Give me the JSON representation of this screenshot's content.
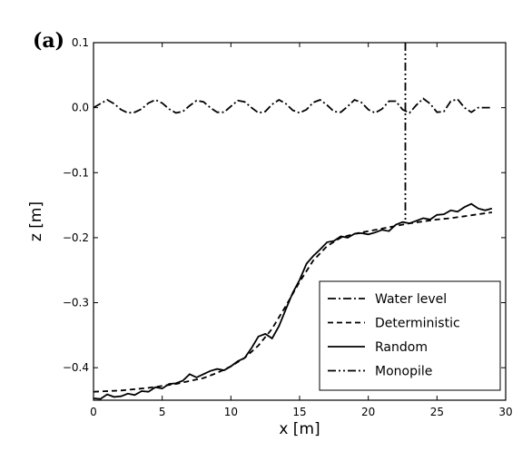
{
  "panel_label": "(a)",
  "chart_data": {
    "type": "line",
    "xlabel": "x [m]",
    "ylabel": "z [m]",
    "xlim": [
      0,
      30
    ],
    "ylim": [
      -0.45,
      0.1
    ],
    "xticks": [
      0,
      5,
      10,
      15,
      20,
      25,
      30
    ],
    "yticks": [
      0.1,
      0.0,
      -0.1,
      -0.2,
      -0.3,
      -0.4
    ],
    "xtick_labels": [
      "0",
      "5",
      "10",
      "15",
      "20",
      "25",
      "30"
    ],
    "ytick_labels": [
      "0.1",
      "0.0",
      "−0.1",
      "−0.2",
      "−0.3",
      "−0.4"
    ],
    "grid": false,
    "legend_position": "bottom-right",
    "series": [
      {
        "name": "Water level",
        "style": "dashdot",
        "x": [
          0,
          1,
          1.5,
          2,
          2.5,
          3,
          3.5,
          4,
          4.5,
          5,
          5.5,
          6,
          6.5,
          7,
          7.5,
          8,
          8.5,
          9,
          9.5,
          10,
          10.5,
          11,
          11.5,
          12,
          12.5,
          13,
          13.5,
          14,
          14.5,
          15,
          15.5,
          16,
          16.5,
          17,
          17.5,
          18,
          18.5,
          19,
          19.5,
          20,
          20.5,
          21,
          21.5,
          22,
          22.5,
          23,
          23.5,
          24,
          24.5,
          25,
          25.5,
          26,
          26.5,
          27,
          27.5,
          28,
          29
        ],
        "values": [
          0.0,
          0.012,
          0.006,
          -0.003,
          -0.008,
          -0.007,
          -0.002,
          0.007,
          0.012,
          0.007,
          -0.002,
          -0.008,
          -0.006,
          0.003,
          0.011,
          0.009,
          0.0,
          -0.007,
          -0.007,
          0.002,
          0.011,
          0.009,
          0.0,
          -0.008,
          -0.006,
          0.005,
          0.012,
          0.006,
          -0.004,
          -0.008,
          -0.003,
          0.008,
          0.012,
          0.004,
          -0.006,
          -0.007,
          0.002,
          0.012,
          0.008,
          -0.003,
          -0.008,
          -0.002,
          0.01,
          0.01,
          -0.003,
          -0.008,
          0.004,
          0.014,
          0.006,
          -0.007,
          -0.006,
          0.01,
          0.013,
          0.0,
          -0.007,
          0.0,
          0.0
        ]
      },
      {
        "name": "Deterministic",
        "style": "dashed",
        "x": [
          0,
          2,
          4,
          6,
          8,
          9,
          10,
          11,
          12,
          13,
          14,
          15,
          16,
          17,
          18,
          19,
          20,
          21,
          22,
          23,
          24,
          25,
          26,
          27,
          28,
          29
        ],
        "values": [
          -0.437,
          -0.435,
          -0.431,
          -0.425,
          -0.416,
          -0.408,
          -0.398,
          -0.385,
          -0.366,
          -0.34,
          -0.305,
          -0.268,
          -0.235,
          -0.213,
          -0.2,
          -0.194,
          -0.19,
          -0.186,
          -0.182,
          -0.178,
          -0.175,
          -0.172,
          -0.17,
          -0.167,
          -0.164,
          -0.161
        ]
      },
      {
        "name": "Random",
        "style": "solid",
        "x": [
          0,
          0.5,
          1,
          1.5,
          2,
          2.5,
          3,
          3.5,
          4,
          4.5,
          5,
          5.5,
          6,
          6.5,
          7,
          7.5,
          8,
          8.5,
          9,
          9.5,
          10,
          10.5,
          11,
          11.5,
          12,
          12.5,
          13,
          13.5,
          14,
          14.5,
          15,
          15.5,
          16,
          16.5,
          17,
          17.5,
          18,
          18.5,
          19,
          19.5,
          20,
          20.5,
          21,
          21.5,
          22,
          22.5,
          23,
          23.5,
          24,
          24.5,
          25,
          25.5,
          26,
          26.5,
          27,
          27.5,
          28,
          28.5,
          29
        ],
        "values": [
          -0.447,
          -0.448,
          -0.441,
          -0.445,
          -0.444,
          -0.44,
          -0.442,
          -0.436,
          -0.437,
          -0.43,
          -0.432,
          -0.425,
          -0.424,
          -0.42,
          -0.41,
          -0.415,
          -0.41,
          -0.405,
          -0.402,
          -0.404,
          -0.398,
          -0.39,
          -0.385,
          -0.37,
          -0.352,
          -0.348,
          -0.355,
          -0.336,
          -0.31,
          -0.285,
          -0.265,
          -0.24,
          -0.228,
          -0.218,
          -0.207,
          -0.205,
          -0.198,
          -0.2,
          -0.194,
          -0.193,
          -0.195,
          -0.192,
          -0.188,
          -0.19,
          -0.18,
          -0.176,
          -0.178,
          -0.174,
          -0.17,
          -0.172,
          -0.165,
          -0.164,
          -0.158,
          -0.16,
          -0.153,
          -0.148,
          -0.155,
          -0.158,
          -0.155
        ]
      },
      {
        "name": "Monopile",
        "style": "dashdotdot",
        "x": [
          22.7,
          22.7
        ],
        "values": [
          0.1,
          -0.178
        ]
      }
    ]
  }
}
